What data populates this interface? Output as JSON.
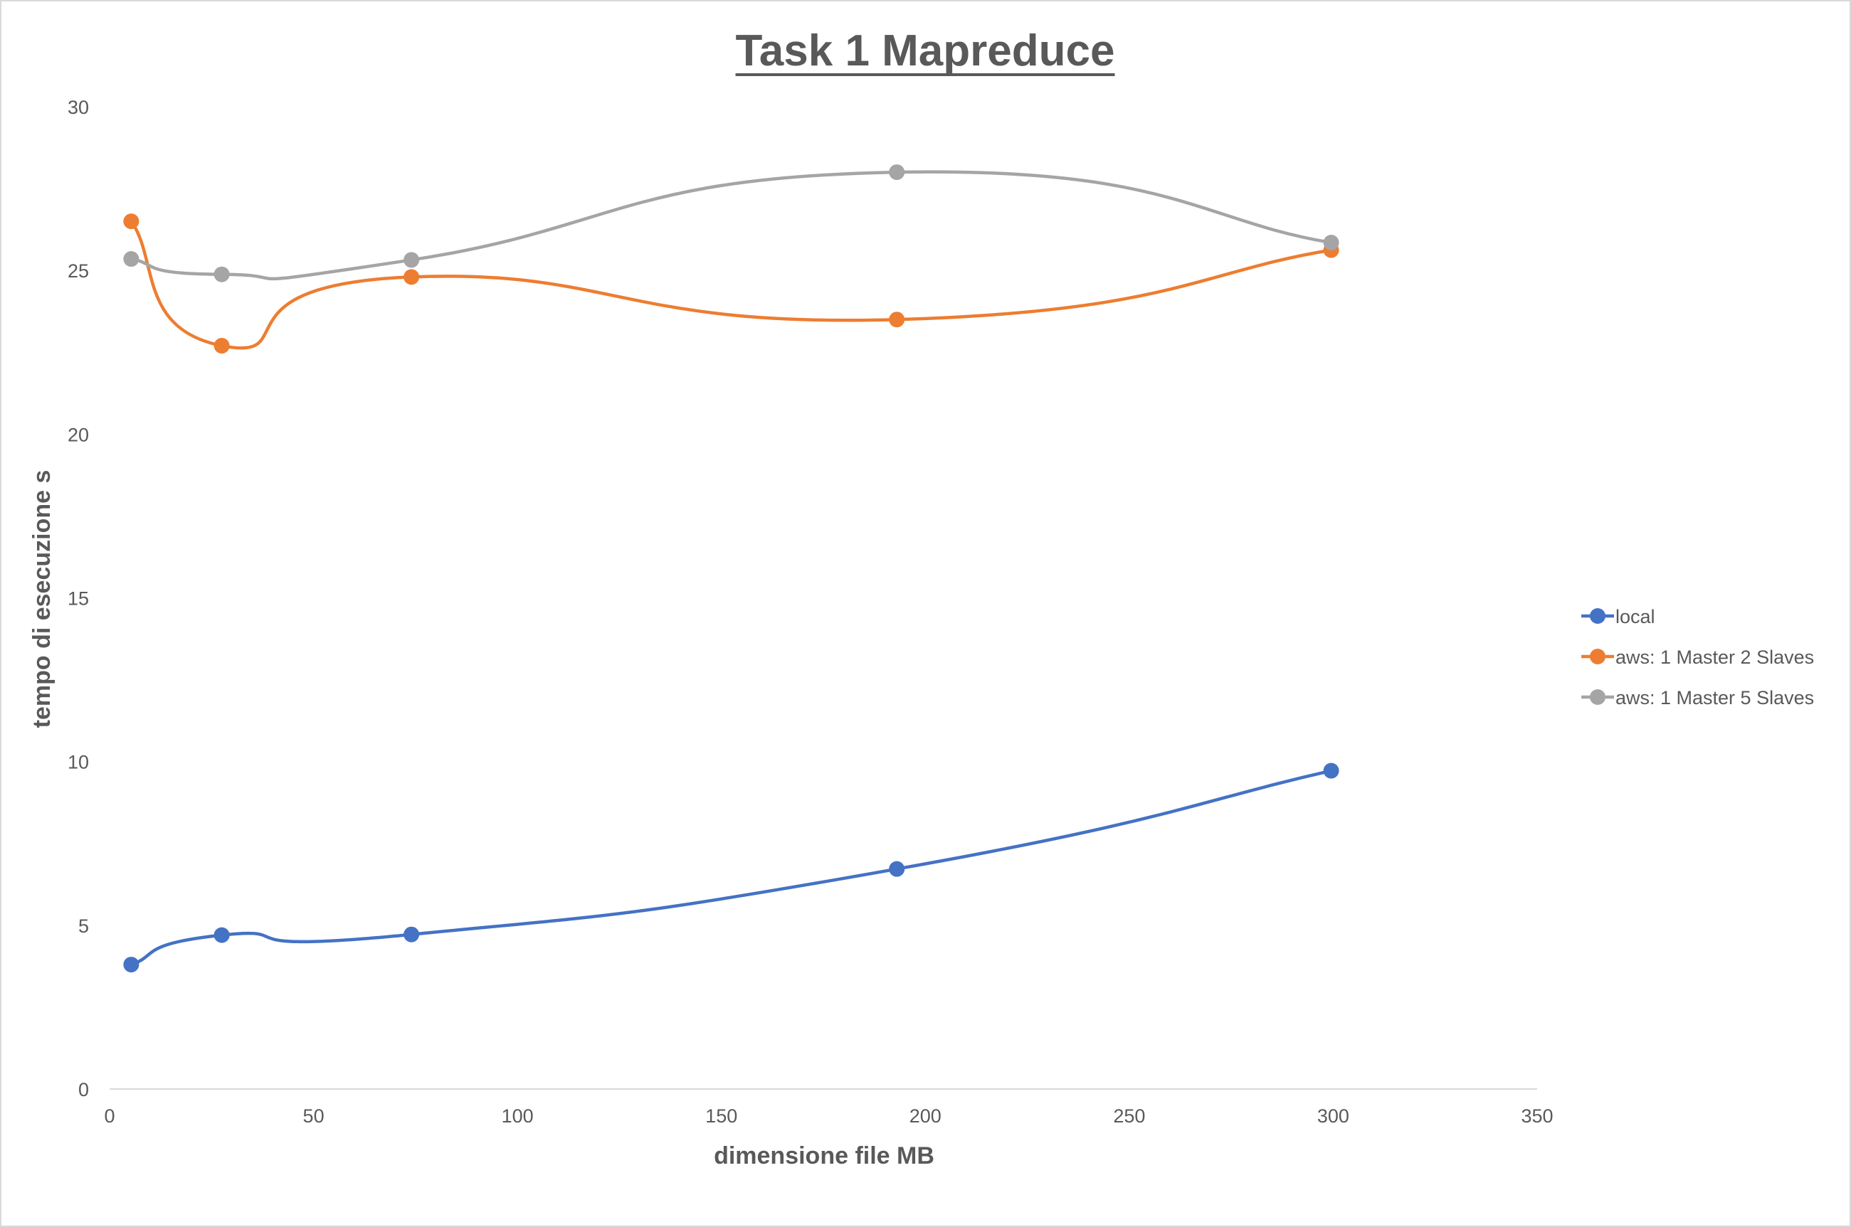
{
  "chart_data": {
    "type": "scatter",
    "title": "Task 1 Mapreduce",
    "xlabel": "dimensione file MB",
    "ylabel": "tempo di esecuzione s",
    "xlim": [
      0,
      350
    ],
    "ylim": [
      0,
      30
    ],
    "x_ticks": [
      "0",
      "50",
      "100",
      "150",
      "200",
      "250",
      "300",
      "350"
    ],
    "y_ticks": [
      "0",
      "5",
      "10",
      "15",
      "20",
      "25",
      "30"
    ],
    "grid": false,
    "smoothed_lines": true,
    "legend_position": "right",
    "series": [
      {
        "name": "local",
        "color": "#4472c4",
        "points": [
          [
            5.3,
            3.8
          ],
          [
            27.5,
            4.7
          ],
          [
            74.0,
            4.72
          ],
          [
            193.0,
            6.72
          ],
          [
            299.5,
            9.72
          ]
        ]
      },
      {
        "name": "aws: 1 Master 2 Slaves",
        "color": "#ed7d31",
        "points": [
          [
            5.3,
            26.5
          ],
          [
            27.5,
            22.7
          ],
          [
            74.0,
            24.8
          ],
          [
            193.0,
            23.5
          ],
          [
            299.5,
            25.62
          ]
        ]
      },
      {
        "name": "aws: 1 Master 5 Slaves",
        "color": "#a5a5a5",
        "points": [
          [
            5.3,
            25.35
          ],
          [
            27.5,
            24.88
          ],
          [
            74.0,
            25.32
          ],
          [
            193.0,
            28.0
          ],
          [
            299.5,
            25.85
          ]
        ]
      }
    ]
  }
}
